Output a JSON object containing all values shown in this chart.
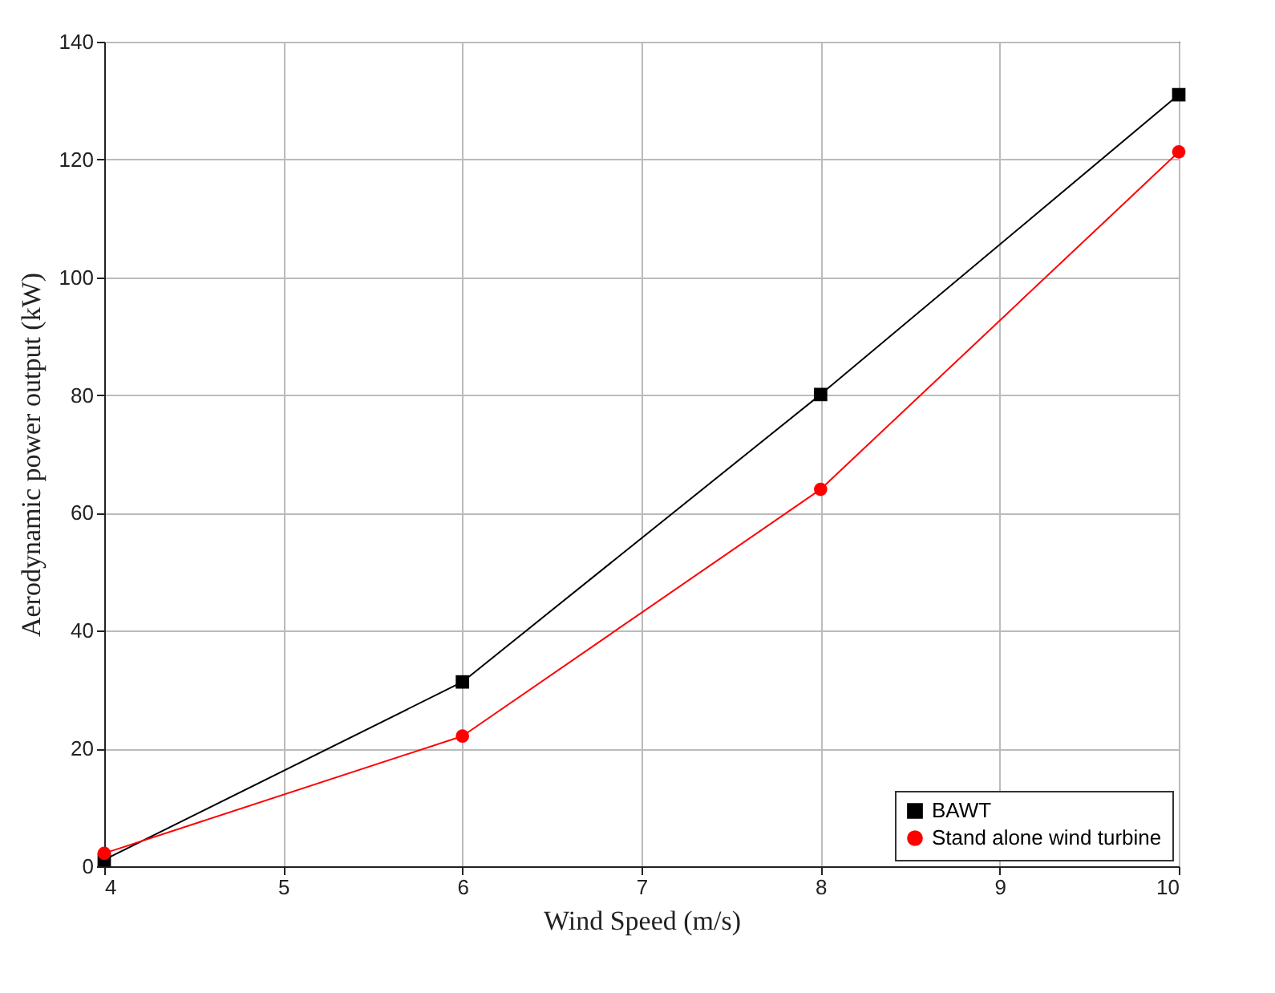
{
  "chart_data": {
    "type": "line",
    "xlabel": "Wind Speed (m/s)",
    "ylabel": "Aerodynamic power output (kW)",
    "x": [
      4,
      6,
      8,
      10
    ],
    "series": [
      {
        "name": "BAWT",
        "color": "#000000",
        "marker": "square",
        "values": [
          1.1,
          31.3,
          80.1,
          131
        ]
      },
      {
        "name": "Stand alone wind turbine",
        "color": "#ff0000",
        "marker": "circle",
        "values": [
          2.2,
          22.1,
          64,
          121.3
        ]
      }
    ],
    "xlim": [
      4,
      10
    ],
    "xticks": [
      4,
      5,
      6,
      7,
      8,
      9,
      10
    ],
    "ylim": [
      0,
      140
    ],
    "yticks": [
      0,
      20,
      40,
      60,
      80,
      100,
      120,
      140
    ],
    "grid": true,
    "legend": "bottom right",
    "line_style": "solid"
  }
}
